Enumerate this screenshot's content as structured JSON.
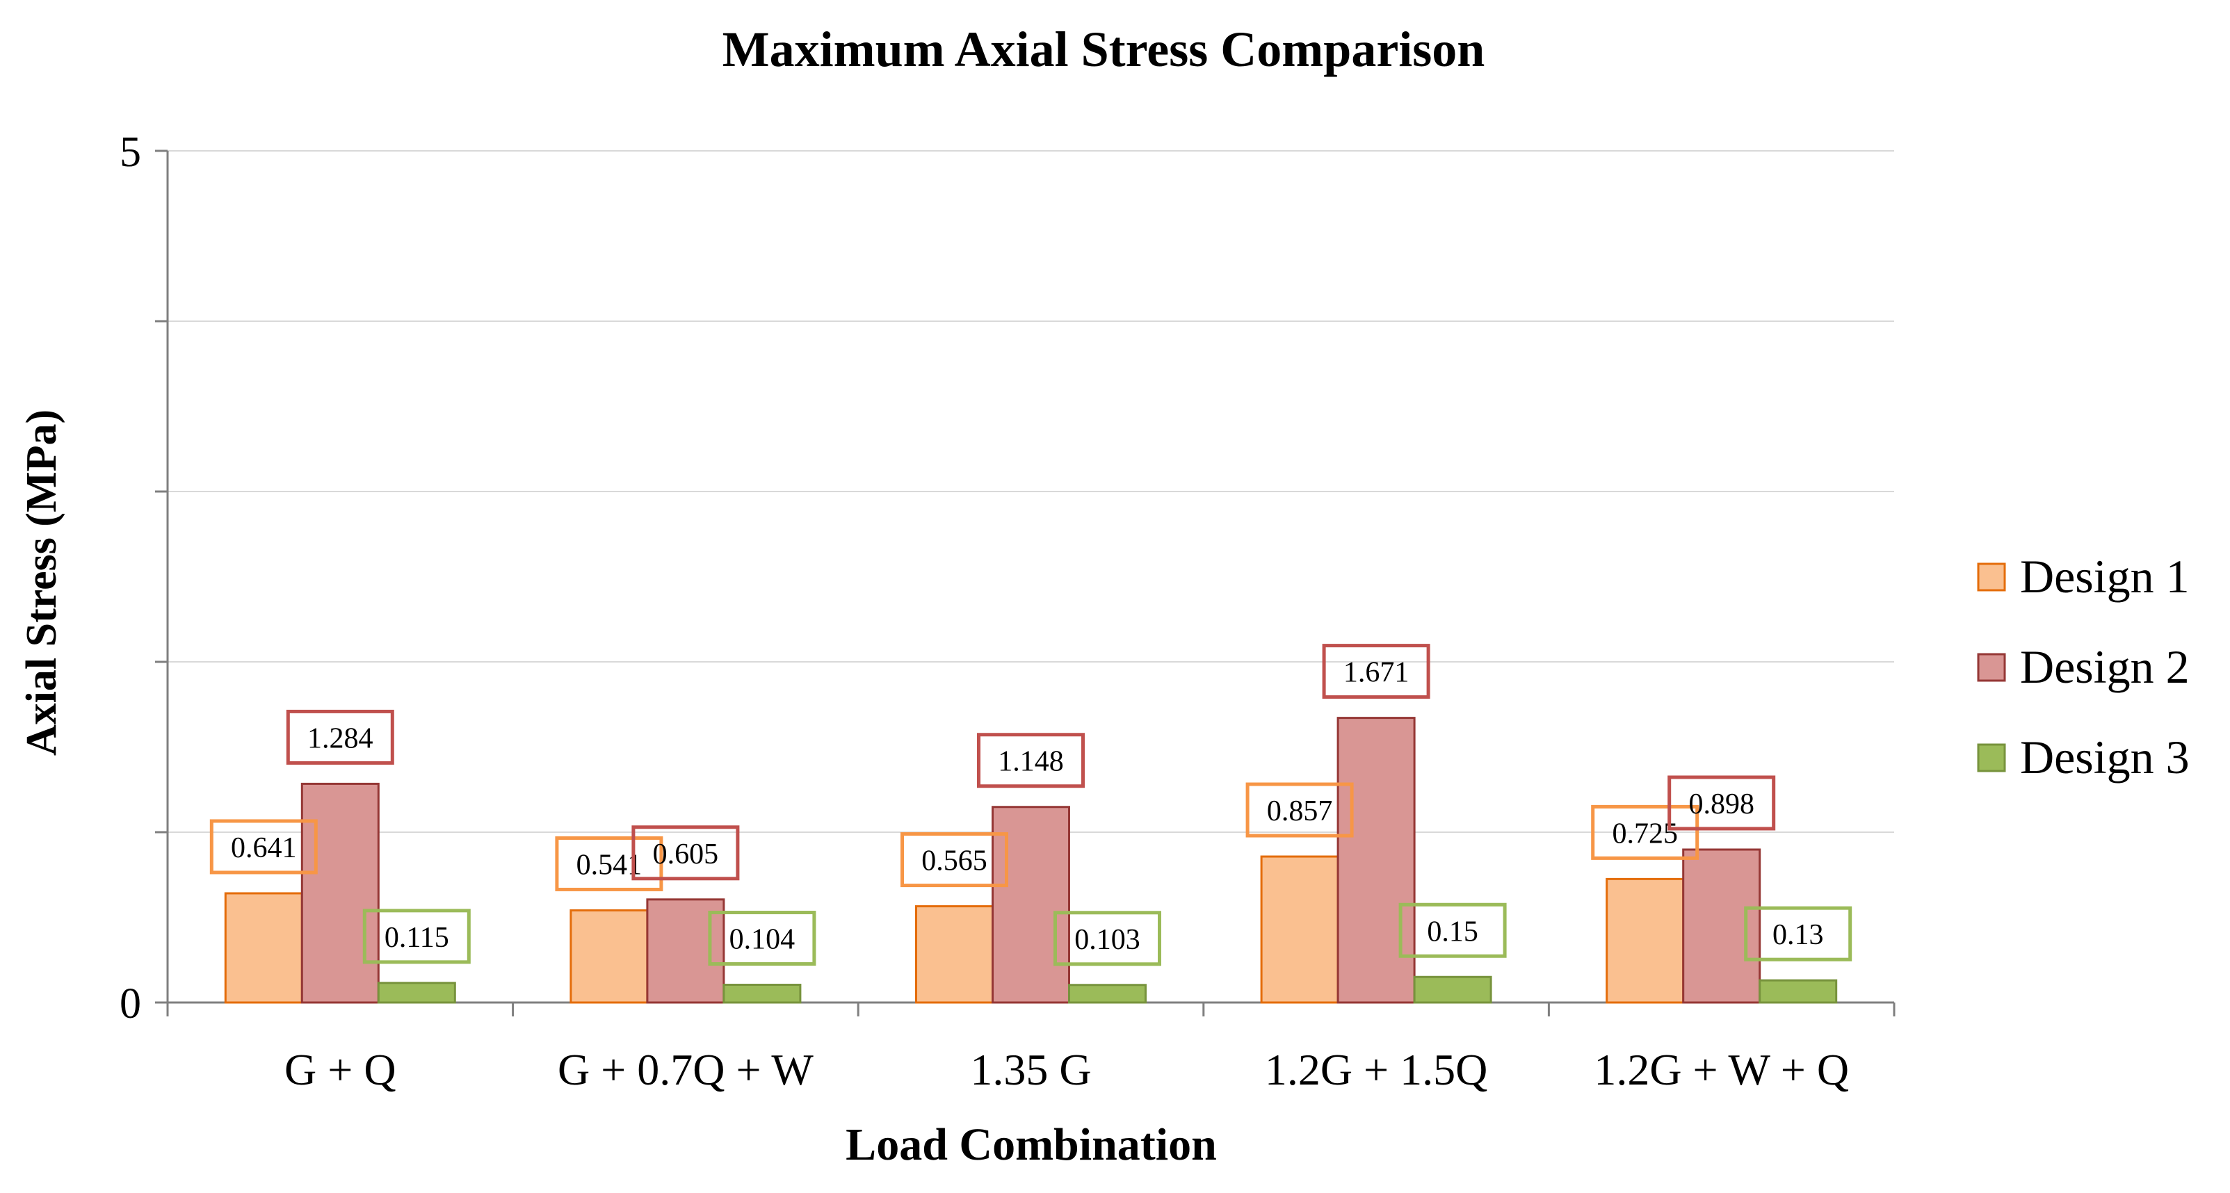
{
  "chart_data": {
    "type": "bar",
    "title": "Maximum Axial Stress Comparison",
    "xlabel": "Load Combination",
    "ylabel": "Axial Stress (MPa)",
    "ylim": [
      0,
      5
    ],
    "yticks_labeled": [
      "0",
      "5"
    ],
    "grid": true,
    "legend_position": "right",
    "categories": [
      "G + Q",
      "G + 0.7Q + W",
      "1.35 G",
      "1.2G + 1.5Q",
      "1.2G + W + Q"
    ],
    "series": [
      {
        "name": "Design 1",
        "values": [
          0.641,
          0.541,
          0.565,
          0.857,
          0.725
        ],
        "labels": [
          "0.641",
          "0.541",
          "0.565",
          "0.857",
          "0.725"
        ],
        "fill": "#FAC090",
        "stroke": "#E46C0A",
        "label_border": "#F79646"
      },
      {
        "name": "Design 2",
        "values": [
          1.284,
          0.605,
          1.148,
          1.671,
          0.898
        ],
        "labels": [
          "1.284",
          "0.605",
          "1.148",
          "1.671",
          "0.898"
        ],
        "fill": "#D99694",
        "stroke": "#953735",
        "label_border": "#C0504D"
      },
      {
        "name": "Design 3",
        "values": [
          0.115,
          0.104,
          0.103,
          0.15,
          0.13
        ],
        "labels": [
          "0.115",
          "0.104",
          "0.103",
          "0.15",
          "0.13"
        ],
        "fill": "#9BBB59",
        "stroke": "#77933C",
        "label_border": "#9BBB59"
      }
    ]
  }
}
